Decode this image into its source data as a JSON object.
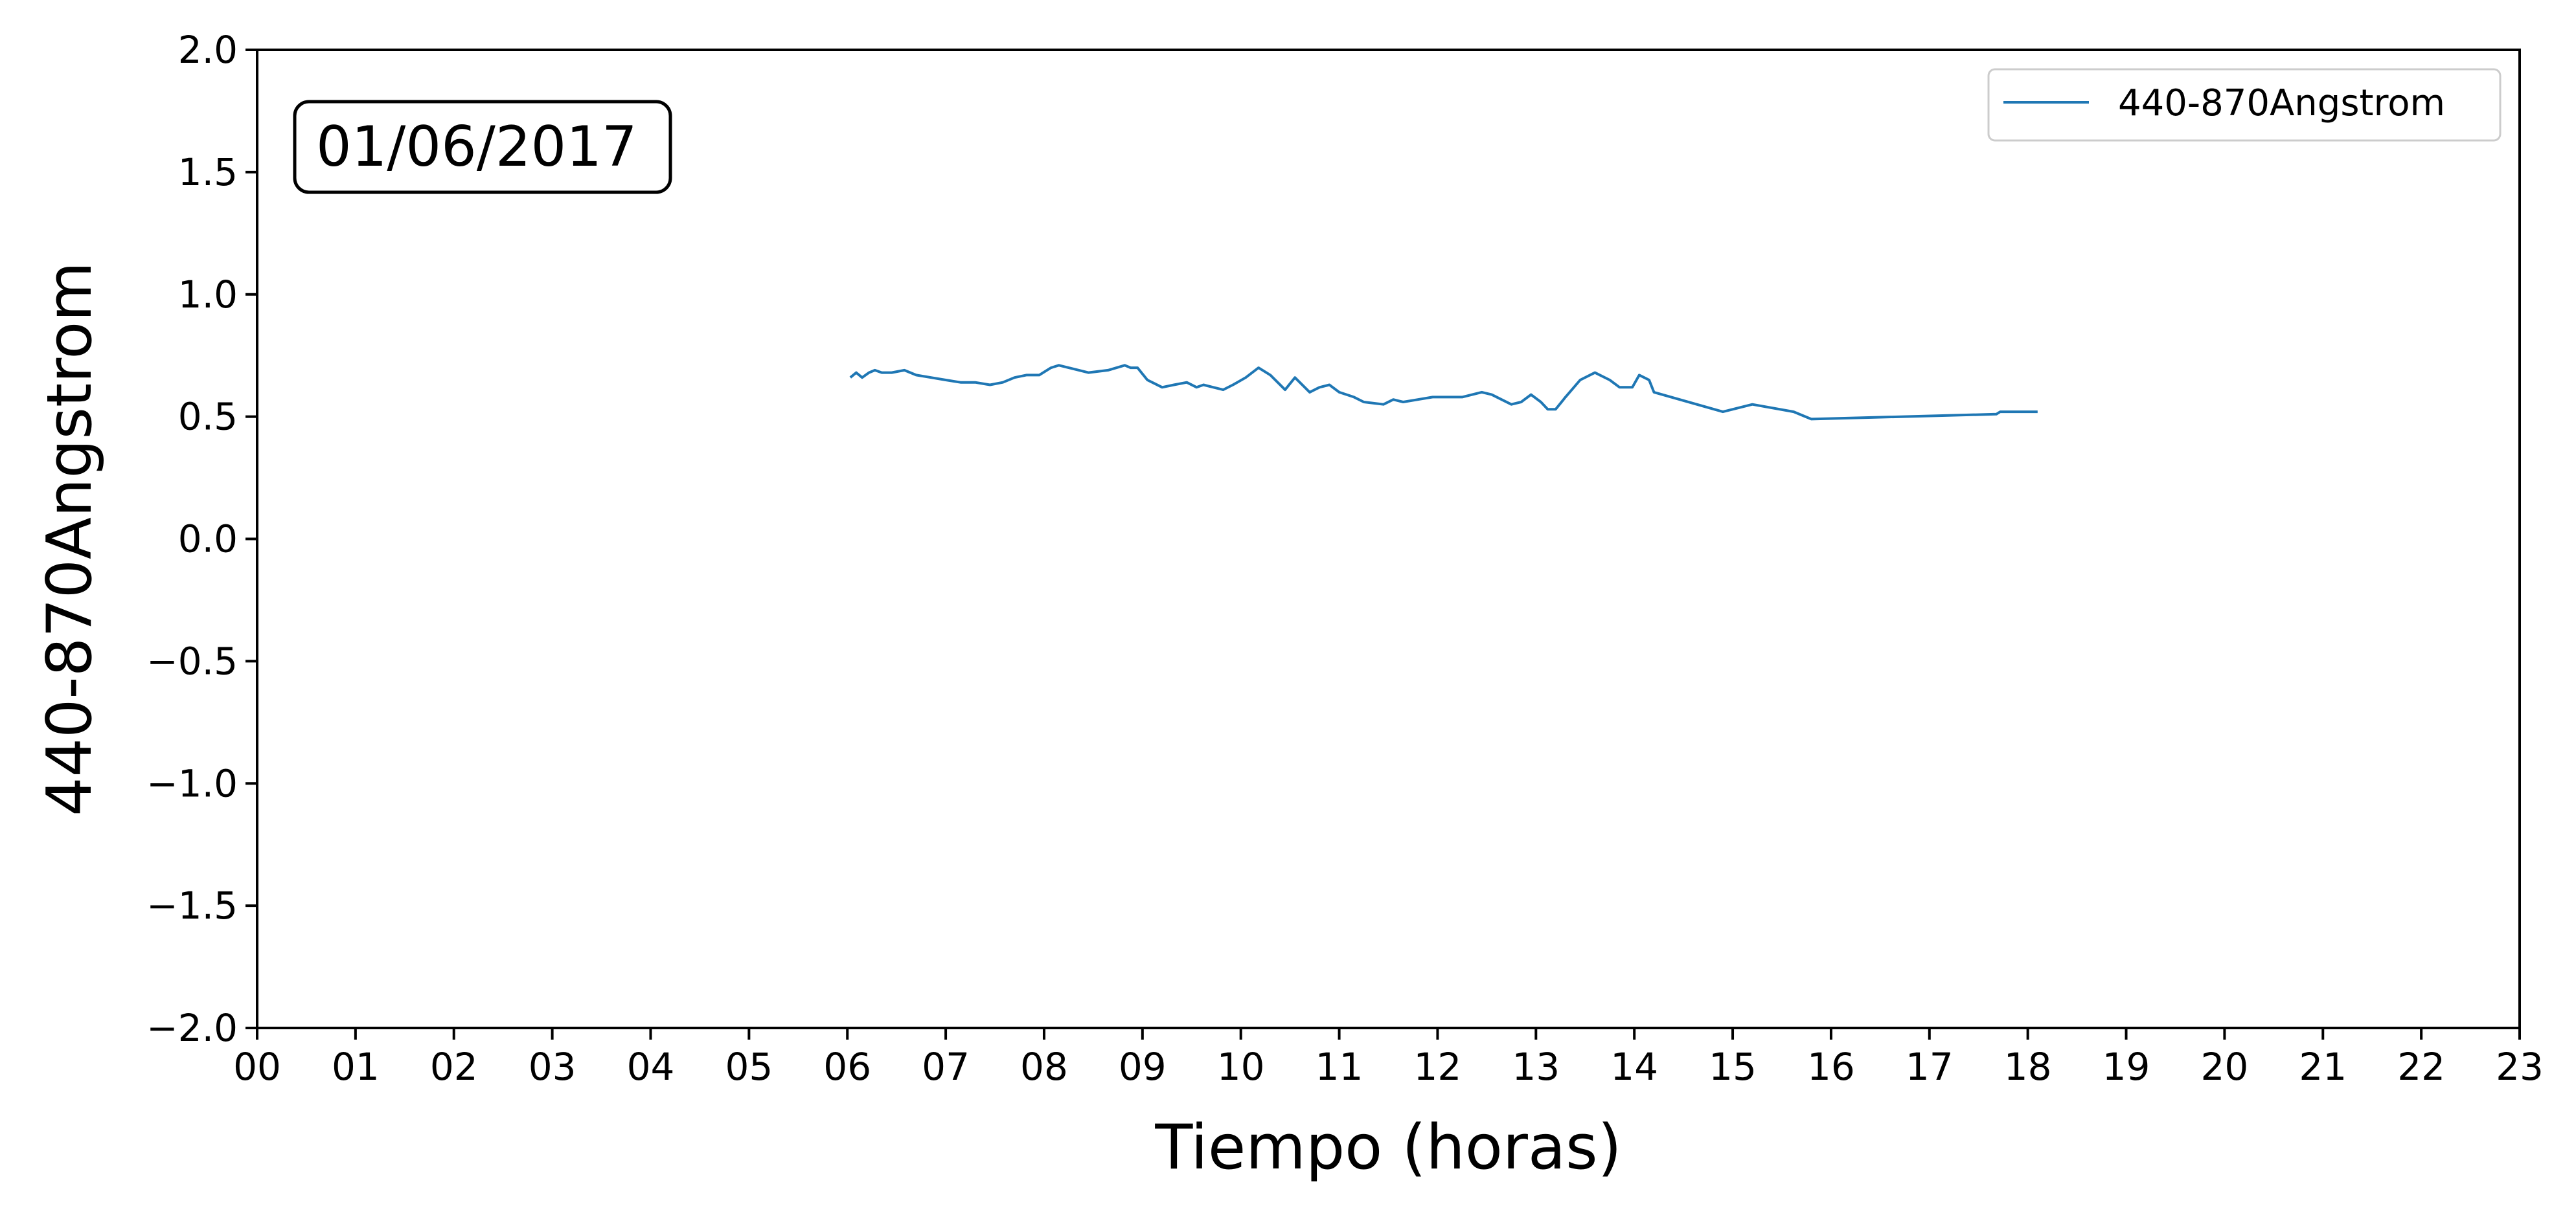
{
  "chart_data": {
    "type": "line",
    "date_label": "01/06/2017",
    "xlabel": "Tiempo (horas)",
    "ylabel": "440-870Angstrom",
    "xlim": [
      0,
      23
    ],
    "ylim": [
      -2.0,
      2.0
    ],
    "x_ticks": [
      "00",
      "01",
      "02",
      "03",
      "04",
      "05",
      "06",
      "07",
      "08",
      "09",
      "10",
      "11",
      "12",
      "13",
      "14",
      "15",
      "16",
      "17",
      "18",
      "19",
      "20",
      "21",
      "22",
      "23"
    ],
    "y_ticks": [
      "−2.0",
      "−1.5",
      "−1.0",
      "−0.5",
      "0.0",
      "0.5",
      "1.0",
      "1.5",
      "2.0"
    ],
    "grid": false,
    "legend_position": "top-right",
    "series": [
      {
        "name": "440-870Angstrom",
        "color": "#1f77b4",
        "x": [
          6.03,
          6.09,
          6.15,
          6.22,
          6.28,
          6.35,
          6.45,
          6.58,
          6.7,
          6.85,
          7.0,
          7.15,
          7.3,
          7.45,
          7.58,
          7.7,
          7.82,
          7.95,
          8.07,
          8.15,
          8.25,
          8.45,
          8.65,
          8.82,
          8.88,
          8.95,
          9.05,
          9.2,
          9.32,
          9.45,
          9.55,
          9.62,
          9.72,
          9.82,
          9.92,
          10.05,
          10.18,
          10.3,
          10.45,
          10.55,
          10.7,
          10.8,
          10.9,
          11.0,
          11.15,
          11.25,
          11.45,
          11.55,
          11.65,
          11.8,
          11.95,
          12.1,
          12.25,
          12.45,
          12.55,
          12.65,
          12.75,
          12.85,
          12.95,
          13.05,
          13.12,
          13.2,
          13.3,
          13.45,
          13.6,
          13.65,
          13.75,
          13.85,
          13.98,
          14.05,
          14.15,
          14.2,
          14.9,
          15.2,
          15.62,
          15.8,
          17.68,
          17.72,
          18.1
        ],
        "values": [
          0.66,
          0.68,
          0.66,
          0.68,
          0.69,
          0.68,
          0.68,
          0.69,
          0.67,
          0.66,
          0.65,
          0.64,
          0.64,
          0.63,
          0.64,
          0.66,
          0.67,
          0.67,
          0.7,
          0.71,
          0.7,
          0.68,
          0.69,
          0.71,
          0.7,
          0.7,
          0.65,
          0.62,
          0.63,
          0.64,
          0.62,
          0.63,
          0.62,
          0.61,
          0.63,
          0.66,
          0.7,
          0.67,
          0.61,
          0.66,
          0.6,
          0.62,
          0.63,
          0.6,
          0.58,
          0.56,
          0.55,
          0.57,
          0.56,
          0.57,
          0.58,
          0.58,
          0.58,
          0.6,
          0.59,
          0.57,
          0.55,
          0.56,
          0.59,
          0.56,
          0.53,
          0.53,
          0.58,
          0.65,
          0.68,
          0.67,
          0.65,
          0.62,
          0.62,
          0.67,
          0.65,
          0.6,
          0.52,
          0.55,
          0.52,
          0.49,
          0.51,
          0.52,
          0.52
        ]
      }
    ]
  }
}
